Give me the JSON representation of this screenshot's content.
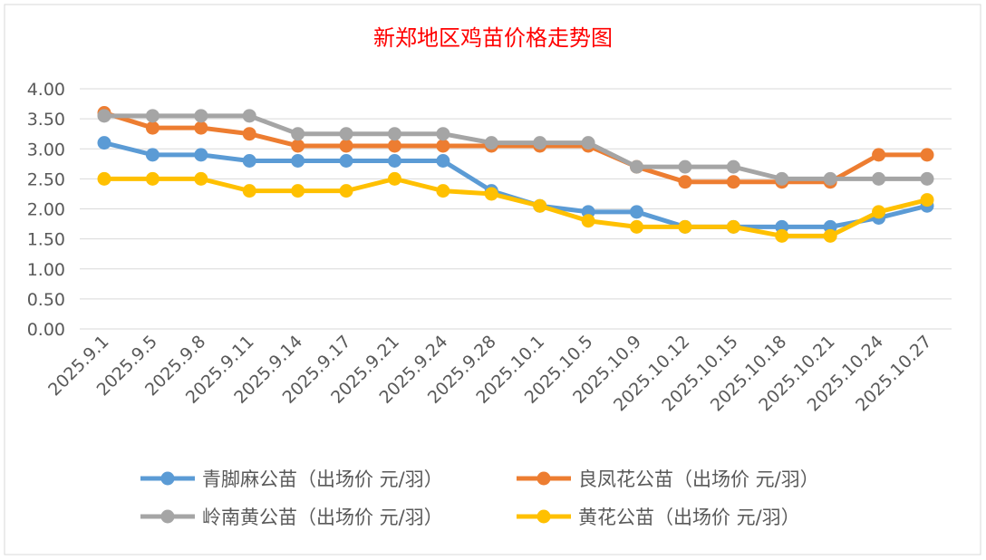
{
  "chart_data": {
    "type": "line",
    "title": "新郑地区鸡苗价格走势图",
    "xlabel": "",
    "ylabel": "",
    "ylim": [
      0,
      4
    ],
    "yticks": [
      "0.00",
      "0.50",
      "1.00",
      "1.50",
      "2.00",
      "2.50",
      "3.00",
      "3.50",
      "4.00"
    ],
    "grid": true,
    "legend_position": "bottom",
    "categories": [
      "2025.9.1",
      "2025.9.5",
      "2025.9.8",
      "2025.9.11",
      "2025.9.14",
      "2025.9.17",
      "2025.9.21",
      "2025.9.24",
      "2025.9.28",
      "2025.10.1",
      "2025.10.5",
      "2025.10.9",
      "2025.10.12",
      "2025.10.15",
      "2025.10.18",
      "2025.10.21",
      "2025.10.24",
      "2025.10.27"
    ],
    "series": [
      {
        "name": "青脚麻公苗（出场价 元/羽）",
        "color": "#5B9BD5",
        "values": [
          3.1,
          2.9,
          2.9,
          2.8,
          2.8,
          2.8,
          2.8,
          2.8,
          2.3,
          2.05,
          1.95,
          1.95,
          1.7,
          1.7,
          1.7,
          1.7,
          1.85,
          2.05
        ]
      },
      {
        "name": "良凤花公苗（出场价 元/羽）",
        "color": "#ED7D31",
        "values": [
          3.6,
          3.35,
          3.35,
          3.25,
          3.05,
          3.05,
          3.05,
          3.05,
          3.05,
          3.05,
          3.05,
          2.7,
          2.45,
          2.45,
          2.45,
          2.45,
          2.9,
          2.9
        ]
      },
      {
        "name": "岭南黄公苗（出场价 元/羽）",
        "color": "#A5A5A5",
        "values": [
          3.55,
          3.55,
          3.55,
          3.55,
          3.25,
          3.25,
          3.25,
          3.25,
          3.1,
          3.1,
          3.1,
          2.7,
          2.7,
          2.7,
          2.5,
          2.5,
          2.5,
          2.5
        ]
      },
      {
        "name": "黄花公苗（出场价 元/羽）",
        "color": "#FFC000",
        "values": [
          2.5,
          2.5,
          2.5,
          2.3,
          2.3,
          2.3,
          2.5,
          2.3,
          2.25,
          2.05,
          1.8,
          1.7,
          1.7,
          1.7,
          1.55,
          1.55,
          1.95,
          2.15
        ]
      }
    ]
  }
}
